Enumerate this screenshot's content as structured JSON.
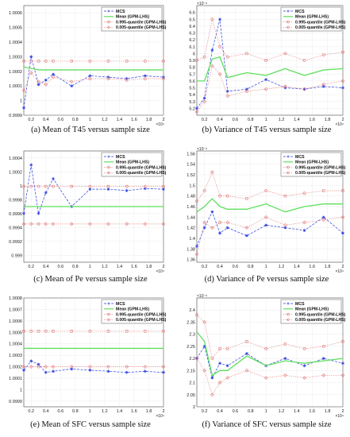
{
  "chart_data": [
    {
      "type": "line",
      "caption": "(a) Mean of T45 versus sample size",
      "x_exponent": "×10⁴",
      "y_exponent": "",
      "ylim": [
        0.9999,
        1.00065
      ],
      "yticks": [
        0.9999,
        1,
        1.0001,
        1.0002,
        1.0003,
        1.0004,
        1.0005,
        1.0006
      ],
      "ytick_labels": [
        "0.9999",
        "1",
        "1.0001",
        "1.0002",
        "1.0003",
        "1.0004",
        "1.0005",
        "1.0006"
      ],
      "legend": [
        "MCS",
        "Mean (GPM-LHS)",
        "0.995-quantile (GPM-LHS)",
        "0.005-quantile (GPM-LHS)"
      ],
      "series": [
        {
          "name": "MCS",
          "x": [
            0.1,
            0.2,
            0.3,
            0.4,
            0.5,
            0.75,
            1,
            1.25,
            1.5,
            1.75,
            2
          ],
          "y": [
            0.99995,
            1.0003,
            1.00011,
            1.00014,
            1.00018,
            1.0001,
            1.00017,
            1.00016,
            1.00015,
            1.00017,
            1.00016
          ]
        },
        {
          "name": "Mean (GPM-LHS)",
          "x": [
            0.1,
            0.2,
            0.3,
            0.4,
            0.5,
            0.75,
            1,
            1.25,
            1.5,
            1.75,
            2
          ],
          "y": [
            1.00023,
            1.00022,
            1.00021,
            1.00021,
            1.00021,
            1.00021,
            1.00021,
            1.00021,
            1.00021,
            1.00021,
            1.00021
          ]
        },
        {
          "name": "0.995-quantile (GPM-LHS)",
          "x": [
            0.1,
            0.2,
            0.3,
            0.4,
            0.5,
            0.75,
            1,
            1.25,
            1.5,
            1.75,
            2
          ],
          "y": [
            1.00027,
            1.00027,
            1.00027,
            1.00027,
            1.00027,
            1.00027,
            1.00027,
            1.00027,
            1.00027,
            1.00027,
            1.00027
          ]
        },
        {
          "name": "0.005-quantile (GPM-LHS)",
          "x": [
            0.1,
            0.2,
            0.3,
            0.4,
            0.5,
            0.75,
            1,
            1.25,
            1.5,
            1.75,
            2
          ],
          "y": [
            1.00007,
            1.00019,
            1.00013,
            1.00011,
            1.00016,
            1.00013,
            1.00015,
            1.00015,
            1.00014,
            1.00015,
            1.00015
          ]
        }
      ]
    },
    {
      "type": "line",
      "caption": "(b) Variance of T45 versus sample size",
      "x_exponent": "×10⁴",
      "y_exponent": "×10⁻⁶",
      "ylim": [
        5.1,
        6.7
      ],
      "yticks": [
        5.2,
        5.3,
        5.4,
        5.5,
        5.6,
        5.7,
        5.8,
        5.9,
        6,
        6.1,
        6.2,
        6.3,
        6.4,
        6.5,
        6.6
      ],
      "ytick_labels": [
        "5.2",
        "5.3",
        "5.4",
        "5.5",
        "5.6",
        "5.7",
        "5.8",
        "5.9",
        "6",
        "6.1",
        "6.2",
        "6.3",
        "6.4",
        "6.5",
        "6.6"
      ],
      "legend": [
        "MCS",
        "Mean (GPM-LHS)",
        "0.995-quantile (GPM-LHS)",
        "0.005-quantile (GPM-LHS)"
      ],
      "series": [
        {
          "name": "MCS",
          "x": [
            0.1,
            0.2,
            0.3,
            0.4,
            0.5,
            0.75,
            1,
            1.25,
            1.5,
            1.75,
            2
          ],
          "y": [
            5.2,
            5.35,
            6.05,
            6.5,
            5.45,
            5.48,
            5.62,
            5.5,
            5.48,
            5.52,
            5.5
          ]
        },
        {
          "name": "Mean (GPM-LHS)",
          "x": [
            0.1,
            0.2,
            0.3,
            0.4,
            0.5,
            0.75,
            1,
            1.25,
            1.5,
            1.75,
            2
          ],
          "y": [
            5.6,
            5.6,
            5.92,
            5.95,
            5.65,
            5.72,
            5.68,
            5.78,
            5.68,
            5.76,
            5.78
          ]
        },
        {
          "name": "0.995-quantile (GPM-LHS)",
          "x": [
            0.1,
            0.2,
            0.3,
            0.4,
            0.5,
            0.75,
            1,
            1.25,
            1.5,
            1.75,
            2
          ],
          "y": [
            5.9,
            5.95,
            6.5,
            6.1,
            5.95,
            6,
            5.9,
            6,
            5.9,
            5.98,
            6.02
          ]
        },
        {
          "name": "0.005-quantile (GPM-LHS)",
          "x": [
            0.1,
            0.2,
            0.3,
            0.4,
            0.5,
            0.75,
            1,
            1.25,
            1.5,
            1.75,
            2
          ],
          "y": [
            5.15,
            5.3,
            5.82,
            5.7,
            5.38,
            5.45,
            5.48,
            5.52,
            5.48,
            5.55,
            5.6
          ]
        }
      ]
    },
    {
      "type": "line",
      "caption": "(c) Mean of Pe versus sample size",
      "x_exponent": "×10⁴",
      "y_exponent": "",
      "ylim": [
        0.9989,
        1.0005
      ],
      "yticks": [
        0.999,
        0.9992,
        0.9994,
        0.9996,
        0.9998,
        1,
        1.0002,
        1.0004
      ],
      "ytick_labels": [
        "0.999",
        "0.9992",
        "0.9994",
        "0.9996",
        "0.9998",
        "1",
        "1.0002",
        "1.0004"
      ],
      "legend": [
        "MCS",
        "Mean (GPM-LHS)",
        "0.995-quantile (GPM-LHS)",
        "0.005-quantile (GPM-LHS)"
      ],
      "series": [
        {
          "name": "MCS",
          "x": [
            0.1,
            0.2,
            0.3,
            0.4,
            0.5,
            0.75,
            1,
            1.25,
            1.5,
            1.75,
            2
          ],
          "y": [
            0.9996,
            1.0003,
            0.9996,
            0.9999,
            1.0001,
            0.9997,
            0.99995,
            0.99995,
            0.99993,
            0.99996,
            0.99995
          ]
        },
        {
          "name": "Mean (GPM-LHS)",
          "x": [
            0.1,
            0.2,
            0.3,
            0.4,
            0.5,
            0.75,
            1,
            1.25,
            1.5,
            1.75,
            2
          ],
          "y": [
            0.9997,
            0.9997,
            0.9997,
            0.9997,
            0.9997,
            0.9997,
            0.9997,
            0.9997,
            0.9997,
            0.9997,
            0.9997
          ]
        },
        {
          "name": "0.995-quantile (GPM-LHS)",
          "x": [
            0.1,
            0.2,
            0.3,
            0.4,
            0.5,
            0.75,
            1,
            1.25,
            1.5,
            1.75,
            2
          ],
          "y": [
            0.99999,
            0.99999,
            0.99999,
            0.99999,
            0.99999,
            0.99999,
            0.99999,
            0.99999,
            0.99999,
            0.99999,
            0.99999
          ]
        },
        {
          "name": "0.005-quantile (GPM-LHS)",
          "x": [
            0.1,
            0.2,
            0.3,
            0.4,
            0.5,
            0.75,
            1,
            1.25,
            1.5,
            1.75,
            2
          ],
          "y": [
            0.99945,
            0.99945,
            0.99945,
            0.99945,
            0.99945,
            0.99945,
            0.99945,
            0.99945,
            0.99945,
            0.99945,
            0.99945
          ]
        }
      ]
    },
    {
      "type": "line",
      "caption": "(d) Variance of Pe versus sample size",
      "x_exponent": "×10⁴",
      "y_exponent": "×10⁻⁶",
      "ylim": [
        1.355,
        1.565
      ],
      "yticks": [
        1.36,
        1.38,
        1.4,
        1.42,
        1.44,
        1.46,
        1.48,
        1.5,
        1.52,
        1.54,
        1.56
      ],
      "ytick_labels": [
        "1.36",
        "1.38",
        "1.4",
        "1.42",
        "1.44",
        "1.46",
        "1.48",
        "1.5",
        "1.52",
        "1.54",
        "1.56"
      ],
      "legend": [
        "MCS",
        "Mean (GPM-LHS)",
        "0.995-quantile (GPM-LHS)",
        "0.005-quantile (GPM-LHS)"
      ],
      "series": [
        {
          "name": "MCS",
          "x": [
            0.1,
            0.2,
            0.3,
            0.4,
            0.5,
            0.75,
            1,
            1.25,
            1.5,
            1.75,
            2
          ],
          "y": [
            1.385,
            1.42,
            1.45,
            1.41,
            1.42,
            1.405,
            1.425,
            1.42,
            1.415,
            1.44,
            1.41
          ]
        },
        {
          "name": "Mean (GPM-LHS)",
          "x": [
            0.1,
            0.2,
            0.3,
            0.4,
            0.5,
            0.75,
            1,
            1.25,
            1.5,
            1.75,
            2
          ],
          "y": [
            1.45,
            1.46,
            1.475,
            1.46,
            1.455,
            1.455,
            1.465,
            1.45,
            1.46,
            1.465,
            1.465
          ]
        },
        {
          "name": "0.995-quantile (GPM-LHS)",
          "x": [
            0.1,
            0.2,
            0.3,
            0.4,
            0.5,
            0.75,
            1,
            1.25,
            1.5,
            1.75,
            2
          ],
          "y": [
            1.47,
            1.49,
            1.525,
            1.48,
            1.48,
            1.475,
            1.49,
            1.48,
            1.485,
            1.49,
            1.49
          ]
        },
        {
          "name": "0.005-quantile (GPM-LHS)",
          "x": [
            0.1,
            0.2,
            0.3,
            0.4,
            0.5,
            0.75,
            1,
            1.25,
            1.5,
            1.75,
            2
          ],
          "y": [
            1.37,
            1.43,
            1.42,
            1.43,
            1.43,
            1.42,
            1.44,
            1.425,
            1.43,
            1.435,
            1.44
          ]
        }
      ]
    },
    {
      "type": "line",
      "caption": "(e) Mean of SFC versus sample size",
      "x_exponent": "×10⁴",
      "y_exponent": "",
      "ylim": [
        0.99985,
        1.0008
      ],
      "yticks": [
        0.9999,
        1,
        1.0001,
        1.0002,
        1.0003,
        1.0004,
        1.0005,
        1.0006,
        1.0007,
        1.0008
      ],
      "ytick_labels": [
        "0.9999",
        "1",
        "1.0001",
        "1.0002",
        "1.0003",
        "1.0004",
        "1.0005",
        "1.0006",
        "1.0007",
        "1.0008"
      ],
      "legend": [
        "MCS",
        "Mean (GPM-LHS)",
        "0.995-quantile (GPM-LHS)",
        "0.005-quantile (GPM-LHS)"
      ],
      "series": [
        {
          "name": "MCS",
          "x": [
            0.1,
            0.2,
            0.3,
            0.4,
            0.5,
            0.75,
            1,
            1.25,
            1.5,
            1.75,
            2
          ],
          "y": [
            1.00017,
            1.00025,
            1.00022,
            1.00015,
            1.00016,
            1.00018,
            1.00017,
            1.00016,
            1.00015,
            1.00016,
            1.00015
          ]
        },
        {
          "name": "Mean (GPM-LHS)",
          "x": [
            0.1,
            0.2,
            0.3,
            0.4,
            0.5,
            0.75,
            1,
            1.25,
            1.5,
            1.75,
            2
          ],
          "y": [
            1.00036,
            1.00036,
            1.00036,
            1.00036,
            1.00036,
            1.00036,
            1.00036,
            1.00036,
            1.00036,
            1.00036,
            1.00036
          ]
        },
        {
          "name": "0.995-quantile (GPM-LHS)",
          "x": [
            0.1,
            0.2,
            0.3,
            0.4,
            0.5,
            0.75,
            1,
            1.25,
            1.5,
            1.75,
            2
          ],
          "y": [
            1.00051,
            1.00051,
            1.00051,
            1.00051,
            1.00051,
            1.00051,
            1.00051,
            1.00051,
            1.00051,
            1.00051,
            1.00051
          ]
        },
        {
          "name": "0.005-quantile (GPM-LHS)",
          "x": [
            0.1,
            0.2,
            0.3,
            0.4,
            0.5,
            0.75,
            1,
            1.25,
            1.5,
            1.75,
            2
          ],
          "y": [
            1.0002,
            1.0002,
            1.0002,
            1.0002,
            1.0002,
            1.0002,
            1.0002,
            1.0002,
            1.0002,
            1.0002,
            1.0002
          ]
        }
      ]
    },
    {
      "type": "line",
      "caption": "(f) Variance of SFC versus sample size",
      "x_exponent": "×10⁴",
      "y_exponent": "×10⁻⁶",
      "ylim": [
        2.0,
        2.45
      ],
      "yticks": [
        2,
        2.05,
        2.1,
        2.15,
        2.2,
        2.25,
        2.3,
        2.35,
        2.4
      ],
      "ytick_labels": [
        "2",
        "2.05",
        "2.1",
        "2.15",
        "2.2",
        "2.25",
        "2.3",
        "2.35",
        "2.4"
      ],
      "legend": [
        "MCS",
        "Mean (GPM-LHS)",
        "0.995-quantile (GPM-LHS)",
        "0.005-quantile (GPM-LHS)"
      ],
      "series": [
        {
          "name": "MCS",
          "x": [
            0.1,
            0.2,
            0.3,
            0.4,
            0.5,
            0.75,
            1,
            1.25,
            1.5,
            1.75,
            2
          ],
          "y": [
            2.2,
            2.25,
            2.12,
            2.18,
            2.17,
            2.22,
            2.17,
            2.2,
            2.17,
            2.2,
            2.18
          ]
        },
        {
          "name": "Mean (GPM-LHS)",
          "x": [
            0.1,
            0.2,
            0.3,
            0.4,
            0.5,
            0.75,
            1,
            1.25,
            1.5,
            1.75,
            2
          ],
          "y": [
            2.31,
            2.27,
            2.13,
            2.15,
            2.15,
            2.21,
            2.17,
            2.19,
            2.18,
            2.19,
            2.2
          ]
        },
        {
          "name": "0.995-quantile (GPM-LHS)",
          "x": [
            0.1,
            0.2,
            0.3,
            0.4,
            0.5,
            0.75,
            1,
            1.25,
            1.5,
            1.75,
            2
          ],
          "y": [
            2.38,
            2.35,
            2.2,
            2.24,
            2.24,
            2.27,
            2.24,
            2.26,
            2.24,
            2.25,
            2.27
          ]
        },
        {
          "name": "0.005-quantile (GPM-LHS)",
          "x": [
            0.1,
            0.2,
            0.3,
            0.4,
            0.5,
            0.75,
            1,
            1.25,
            1.5,
            1.75,
            2
          ],
          "y": [
            2.2,
            2.15,
            2.05,
            2.1,
            2.12,
            2.15,
            2.12,
            2.13,
            2.12,
            2.13,
            2.13
          ]
        }
      ]
    }
  ],
  "x_axis": {
    "xlim": [
      0.1,
      2
    ],
    "ticks": [
      0.2,
      0.4,
      0.6,
      0.8,
      1,
      1.2,
      1.4,
      1.6,
      1.8,
      2
    ],
    "tick_labels": [
      "0.2",
      "0.4",
      "0.6",
      "0.8",
      "1",
      "1.2",
      "1.4",
      "1.6",
      "1.8",
      "2"
    ]
  },
  "styles": {
    "colors": {
      "MCS": "#2b3ee0",
      "Mean (GPM-LHS)": "#5ee05e",
      "0.995-quantile (GPM-LHS)": "#e07070",
      "0.005-quantile (GPM-LHS)": "#e07070"
    },
    "markers": {
      "MCS": "star",
      "Mean (GPM-LHS)": "none",
      "0.995-quantile (GPM-LHS)": "circle",
      "0.005-quantile (GPM-LHS)": "diamond"
    },
    "dashes": {
      "MCS": "dash",
      "Mean (GPM-LHS)": "solid",
      "0.995-quantile (GPM-LHS)": "dot",
      "0.005-quantile (GPM-LHS)": "dot"
    }
  }
}
